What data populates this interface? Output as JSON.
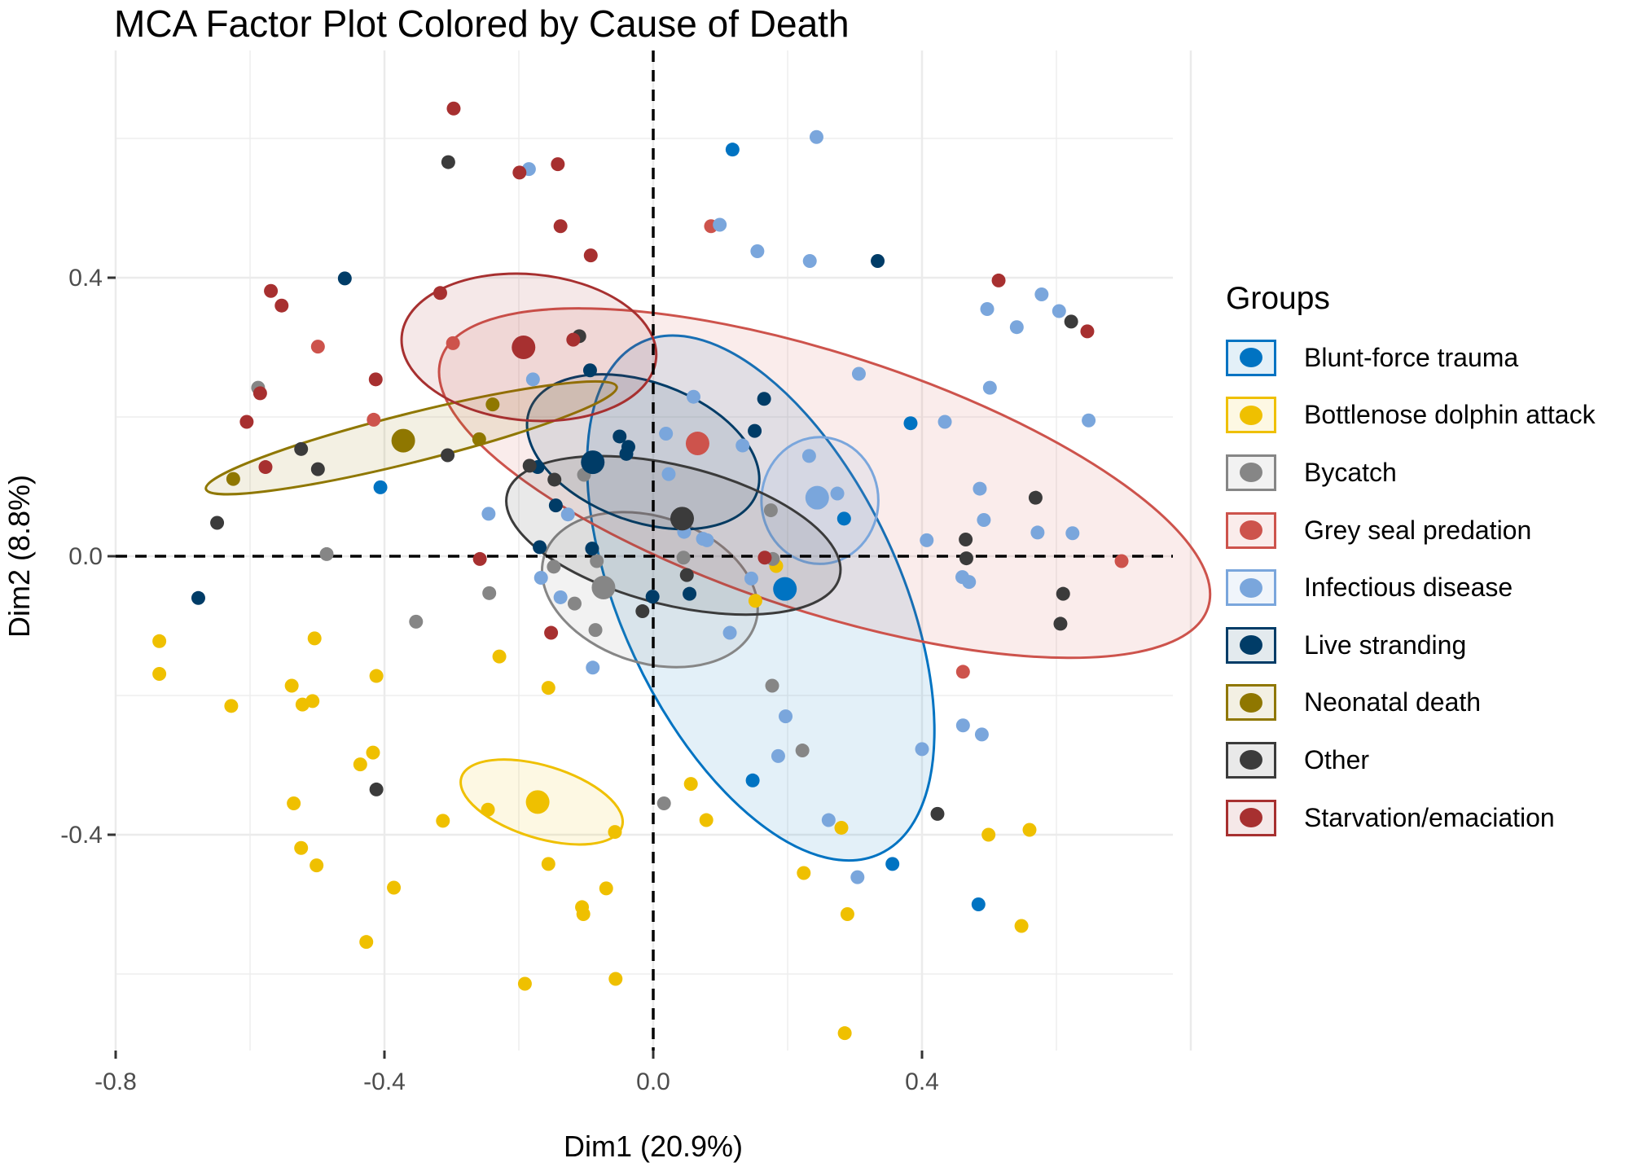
{
  "chart_data": {
    "type": "scatter",
    "title": "MCA Factor Plot Colored by Cause of Death",
    "xlabel": "Dim1 (20.9%)",
    "ylabel": "Dim2 (8.8%)",
    "xlim": [
      -0.8,
      0.78
    ],
    "ylim": [
      -0.72,
      0.65
    ],
    "x_ticks": [
      -0.8,
      -0.4,
      0.0,
      0.4
    ],
    "x_tick_labels": [
      "-0.8",
      "-0.4",
      "0.0",
      "0.4"
    ],
    "y_ticks": [
      -0.4,
      0.0,
      0.4
    ],
    "y_tick_labels": [
      "-0.4",
      "0.0",
      "0.4"
    ],
    "grid": true,
    "reference_lines": {
      "x": 0.0,
      "y": 0.0,
      "style": "dashed"
    },
    "legend": {
      "title": "Groups",
      "position": "right"
    },
    "series": [
      {
        "name": "Blunt-force trauma",
        "color": "#0073C2",
        "centroid": [
          0.196,
          -0.047
        ],
        "ellipse": {
          "cx": 0.16,
          "cy": -0.06,
          "rx": 0.42,
          "ry": 0.2,
          "angle_deg": -65
        },
        "points": [
          [
            0.118,
            0.584
          ],
          [
            0.383,
            0.191
          ],
          [
            -0.406,
            0.099
          ],
          [
            0.284,
            0.054
          ],
          [
            0.148,
            -0.322
          ],
          [
            0.356,
            -0.442
          ],
          [
            0.484,
            -0.5
          ]
        ]
      },
      {
        "name": "Bottlenose dolphin attack",
        "color": "#EFC000",
        "centroid": [
          -0.172,
          -0.353
        ],
        "ellipse": {
          "cx": -0.166,
          "cy": -0.353,
          "rx": 0.125,
          "ry": 0.052,
          "angle_deg": -17
        },
        "points": [
          [
            -0.735,
            -0.122
          ],
          [
            -0.735,
            -0.169
          ],
          [
            -0.628,
            -0.215
          ],
          [
            -0.538,
            -0.186
          ],
          [
            -0.522,
            -0.213
          ],
          [
            -0.507,
            -0.208
          ],
          [
            -0.504,
            -0.118
          ],
          [
            -0.412,
            -0.172
          ],
          [
            -0.229,
            -0.144
          ],
          [
            -0.156,
            -0.189
          ],
          [
            -0.535,
            -0.355
          ],
          [
            -0.436,
            -0.299
          ],
          [
            -0.417,
            -0.282
          ],
          [
            -0.524,
            -0.419
          ],
          [
            -0.501,
            -0.444
          ],
          [
            -0.386,
            -0.476
          ],
          [
            -0.246,
            -0.364
          ],
          [
            -0.313,
            -0.38
          ],
          [
            -0.156,
            -0.442
          ],
          [
            -0.057,
            -0.396
          ],
          [
            -0.07,
            -0.477
          ],
          [
            -0.106,
            -0.504
          ],
          [
            -0.104,
            -0.514
          ],
          [
            -0.427,
            -0.554
          ],
          [
            -0.191,
            -0.614
          ],
          [
            -0.056,
            -0.607
          ],
          [
            0.056,
            -0.327
          ],
          [
            0.079,
            -0.379
          ],
          [
            0.28,
            -0.39
          ],
          [
            0.224,
            -0.455
          ],
          [
            0.289,
            -0.514
          ],
          [
            0.285,
            -0.685
          ],
          [
            0.499,
            -0.4
          ],
          [
            0.56,
            -0.393
          ],
          [
            0.548,
            -0.531
          ],
          [
            0.183,
            -0.014
          ],
          [
            0.152,
            -0.064
          ]
        ]
      },
      {
        "name": "Bycatch",
        "color": "#868686",
        "centroid": [
          -0.074,
          -0.045
        ],
        "ellipse": {
          "cx": -0.005,
          "cy": -0.048,
          "rx": 0.165,
          "ry": 0.105,
          "angle_deg": -18
        },
        "points": [
          [
            -0.588,
            0.242
          ],
          [
            -0.486,
            0.003
          ],
          [
            -0.353,
            -0.094
          ],
          [
            -0.244,
            -0.053
          ],
          [
            -0.148,
            -0.015
          ],
          [
            -0.084,
            -0.007
          ],
          [
            -0.117,
            -0.068
          ],
          [
            -0.086,
            -0.106
          ],
          [
            0.175,
            0.066
          ],
          [
            0.045,
            -0.002
          ],
          [
            0.178,
            -0.004
          ],
          [
            0.177,
            -0.186
          ],
          [
            0.222,
            -0.279
          ],
          [
            0.016,
            -0.355
          ],
          [
            -0.103,
            0.117
          ]
        ]
      },
      {
        "name": "Grey seal predation",
        "color": "#CD534C",
        "centroid": [
          0.066,
          0.162
        ],
        "ellipse": {
          "cx": 0.255,
          "cy": 0.105,
          "rx": 0.6,
          "ry": 0.185,
          "angle_deg": -18
        },
        "points": [
          [
            0.086,
            0.474
          ],
          [
            -0.499,
            0.301
          ],
          [
            -0.416,
            0.196
          ],
          [
            -0.298,
            0.306
          ],
          [
            0.697,
            -0.007
          ],
          [
            0.461,
            -0.166
          ]
        ]
      },
      {
        "name": "Infectious disease",
        "color": "#7AA6DC",
        "centroid": [
          0.244,
          0.084
        ],
        "ellipse": {
          "cx": 0.248,
          "cy": 0.08,
          "rx": 0.087,
          "ry": 0.091,
          "angle_deg": 0
        },
        "points": [
          [
            -0.185,
            0.556
          ],
          [
            0.099,
            0.476
          ],
          [
            0.155,
            0.438
          ],
          [
            0.233,
            0.424
          ],
          [
            0.243,
            0.602
          ],
          [
            0.497,
            0.355
          ],
          [
            0.578,
            0.376
          ],
          [
            0.541,
            0.329
          ],
          [
            0.604,
            0.352
          ],
          [
            0.501,
            0.242
          ],
          [
            0.648,
            0.195
          ],
          [
            0.434,
            0.193
          ],
          [
            0.306,
            0.262
          ],
          [
            0.06,
            0.229
          ],
          [
            -0.179,
            0.254
          ],
          [
            0.019,
            0.176
          ],
          [
            0.133,
            0.159
          ],
          [
            -0.245,
            0.061
          ],
          [
            -0.127,
            0.06
          ],
          [
            0.023,
            0.118
          ],
          [
            0.08,
            0.023
          ],
          [
            0.232,
            0.144
          ],
          [
            0.274,
            0.09
          ],
          [
            0.041,
            0.047
          ],
          [
            0.046,
            0.035
          ],
          [
            0.074,
            0.025
          ],
          [
            0.146,
            -0.032
          ],
          [
            0.114,
            -0.11
          ],
          [
            -0.167,
            -0.031
          ],
          [
            -0.138,
            -0.059
          ],
          [
            -0.09,
            -0.16
          ],
          [
            0.197,
            -0.23
          ],
          [
            0.186,
            -0.287
          ],
          [
            0.261,
            -0.379
          ],
          [
            0.304,
            -0.461
          ],
          [
            0.4,
            -0.277
          ],
          [
            0.461,
            -0.243
          ],
          [
            0.489,
            -0.256
          ],
          [
            0.492,
            0.052
          ],
          [
            0.486,
            0.097
          ],
          [
            0.572,
            0.034
          ],
          [
            0.624,
            0.033
          ],
          [
            0.46,
            -0.03
          ],
          [
            0.47,
            -0.037
          ],
          [
            0.407,
            0.023
          ]
        ]
      },
      {
        "name": "Live stranding",
        "color": "#003C67",
        "centroid": [
          -0.09,
          0.135
        ],
        "ellipse": {
          "cx": -0.015,
          "cy": 0.15,
          "rx": 0.18,
          "ry": 0.1,
          "angle_deg": -20
        },
        "points": [
          [
            -0.459,
            0.399
          ],
          [
            -0.677,
            -0.06
          ],
          [
            -0.094,
            0.267
          ],
          [
            0.165,
            0.226
          ],
          [
            0.334,
            0.424
          ],
          [
            0.151,
            0.18
          ],
          [
            -0.05,
            0.172
          ],
          [
            -0.172,
            0.128
          ],
          [
            -0.145,
            0.073
          ],
          [
            -0.037,
            0.157
          ],
          [
            -0.04,
            0.147
          ],
          [
            -0.169,
            0.013
          ],
          [
            -0.091,
            0.011
          ],
          [
            -0.001,
            -0.058
          ],
          [
            0.054,
            -0.054
          ]
        ]
      },
      {
        "name": "Neonatal death",
        "color": "#8F7700",
        "centroid": [
          -0.372,
          0.166
        ],
        "ellipse": {
          "cx": -0.36,
          "cy": 0.17,
          "rx": 0.315,
          "ry": 0.035,
          "angle_deg": 14
        },
        "points": [
          [
            -0.239,
            0.218
          ],
          [
            -0.625,
            0.111
          ],
          [
            -0.259,
            0.168
          ]
        ]
      },
      {
        "name": "Other",
        "color": "#3B3B3B",
        "centroid": [
          0.043,
          0.054
        ],
        "ellipse": {
          "cx": 0.03,
          "cy": 0.03,
          "rx": 0.255,
          "ry": 0.1,
          "angle_deg": -14
        },
        "points": [
          [
            -0.305,
            0.566
          ],
          [
            -0.11,
            0.316
          ],
          [
            -0.649,
            0.048
          ],
          [
            -0.499,
            0.125
          ],
          [
            -0.524,
            0.154
          ],
          [
            -0.306,
            0.145
          ],
          [
            -0.184,
            0.13
          ],
          [
            -0.147,
            0.11
          ],
          [
            -0.412,
            -0.335
          ],
          [
            0.05,
            -0.027
          ],
          [
            -0.016,
            -0.079
          ],
          [
            0.569,
            0.084
          ],
          [
            0.465,
            0.024
          ],
          [
            0.466,
            -0.003
          ],
          [
            0.606,
            -0.097
          ],
          [
            0.61,
            -0.054
          ],
          [
            0.423,
            -0.37
          ],
          [
            0.622,
            0.337
          ]
        ]
      },
      {
        "name": "Starvation/emaciation",
        "color": "#A73030",
        "centroid": [
          -0.193,
          0.3
        ],
        "ellipse": {
          "cx": -0.185,
          "cy": 0.3,
          "rx": 0.19,
          "ry": 0.105,
          "angle_deg": -5
        },
        "points": [
          [
            -0.297,
            0.643
          ],
          [
            -0.142,
            0.563
          ],
          [
            -0.199,
            0.551
          ],
          [
            -0.138,
            0.474
          ],
          [
            -0.093,
            0.432
          ],
          [
            -0.317,
            0.378
          ],
          [
            -0.569,
            0.381
          ],
          [
            -0.553,
            0.36
          ],
          [
            -0.413,
            0.254
          ],
          [
            -0.585,
            0.234
          ],
          [
            -0.605,
            0.193
          ],
          [
            -0.577,
            0.128
          ],
          [
            -0.119,
            0.311
          ],
          [
            0.514,
            0.396
          ],
          [
            0.646,
            0.323
          ],
          [
            -0.258,
            -0.004
          ],
          [
            -0.152,
            -0.11
          ],
          [
            0.166,
            -0.002
          ]
        ]
      }
    ]
  }
}
